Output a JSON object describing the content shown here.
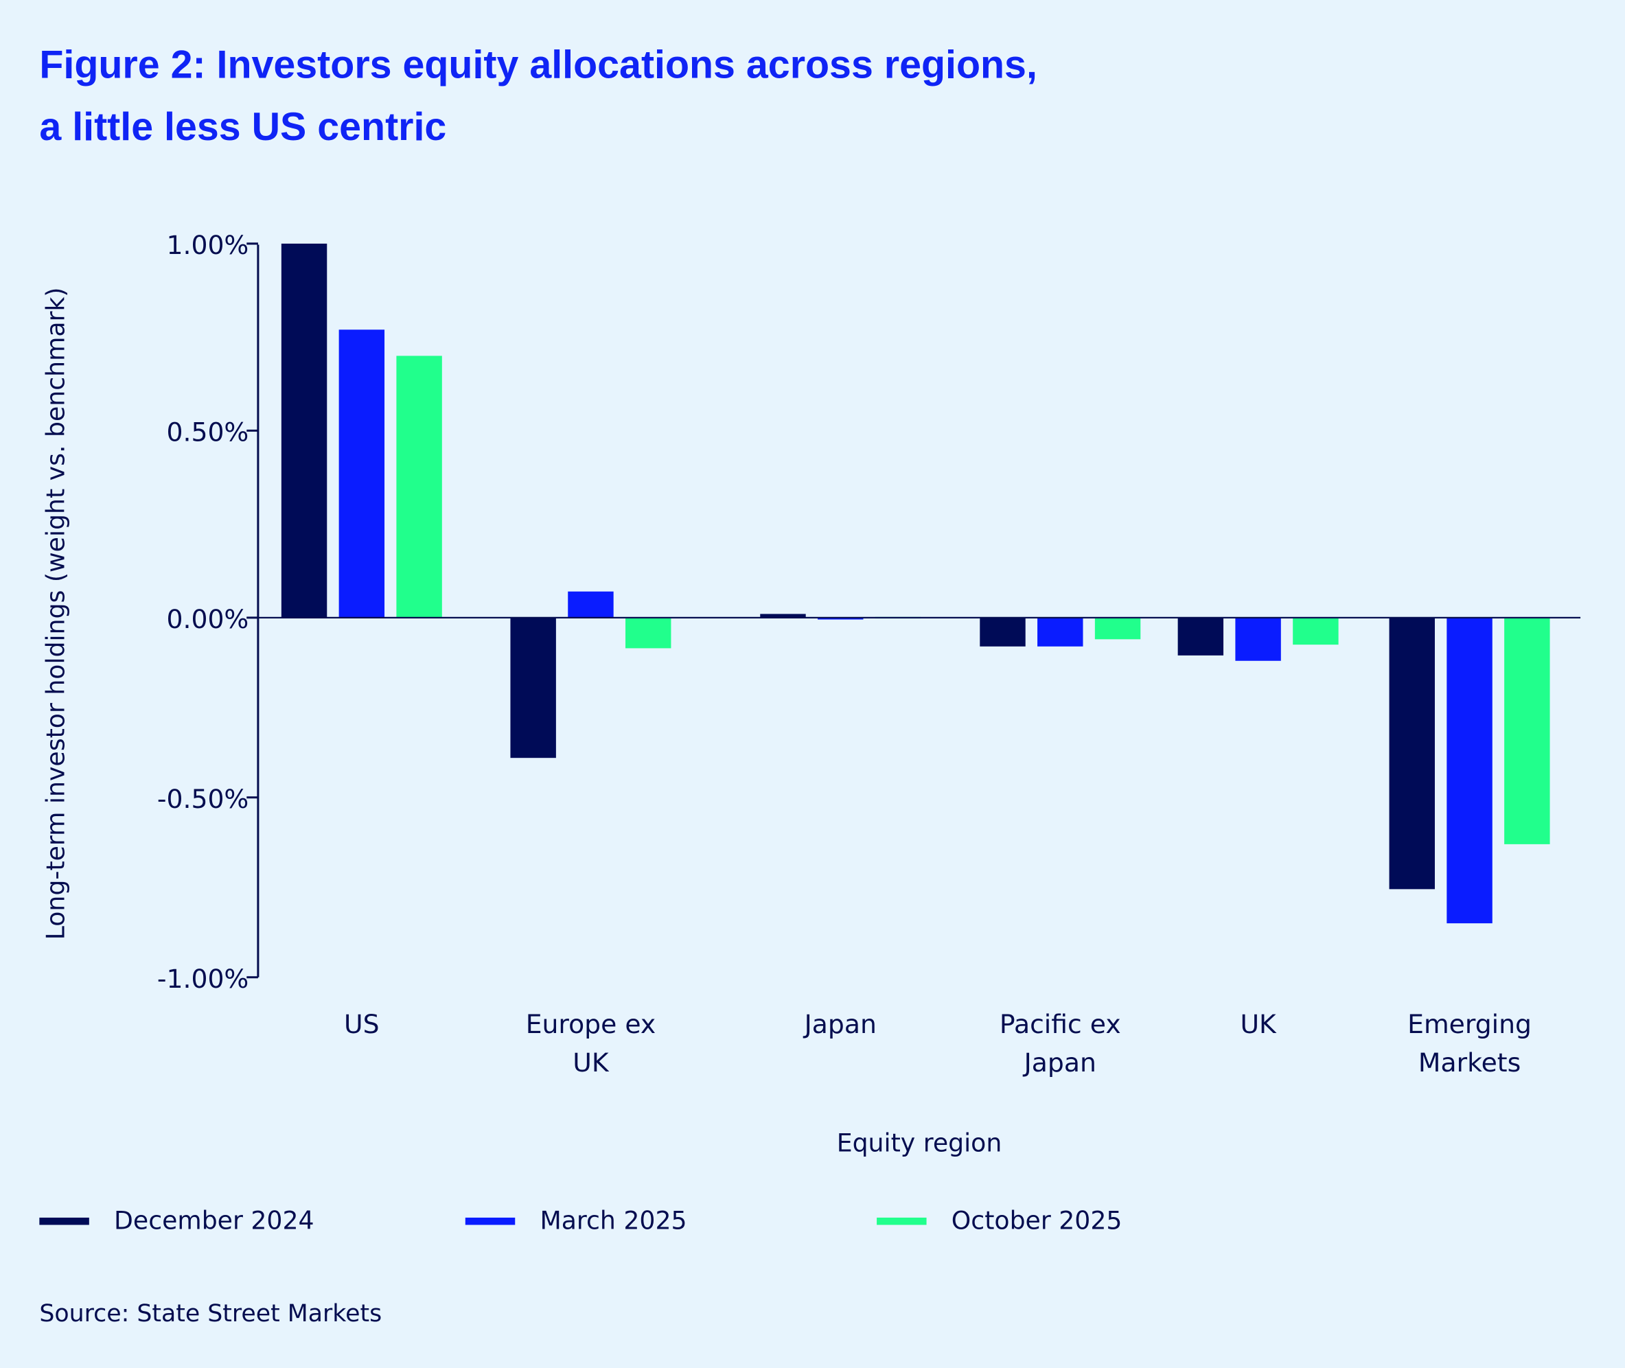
{
  "chart_data": {
    "type": "bar",
    "title_lines": [
      "Figure 2: Investors equity allocations across regions,",
      "a little less US centric"
    ],
    "xlabel": "Equity region",
    "ylabel": "Long-term investor holdings (weight vs. benchmark)",
    "categories": [
      [
        "US"
      ],
      [
        "Europe ex",
        "UK"
      ],
      [
        "Japan"
      ],
      [
        "Pacific ex",
        "Japan"
      ],
      [
        "UK"
      ],
      [
        "Emerging",
        "Markets"
      ]
    ],
    "ylim": [
      -1.0,
      1.0
    ],
    "yticks": [
      1.0,
      0.5,
      0.0,
      -0.5,
      -1.0
    ],
    "ytick_labels": [
      "1.00%",
      "0.50%",
      "0.00%",
      "-0.50%",
      "-1.00%"
    ],
    "grid": false,
    "legend_position": "bottom",
    "series": [
      {
        "name": "December 2024",
        "color": "#000b57",
        "values": [
          1.0,
          -0.39,
          0.01,
          -0.08,
          -0.105,
          -0.755
        ]
      },
      {
        "name": "March 2025",
        "color": "#0a1cff",
        "values": [
          0.77,
          0.07,
          -0.005,
          -0.08,
          -0.12,
          -0.85
        ]
      },
      {
        "name": "October 2025",
        "color": "#21ff8c",
        "values": [
          0.7,
          -0.085,
          0.002,
          -0.06,
          -0.075,
          -0.63
        ]
      }
    ],
    "source": "Source: State Street Markets"
  }
}
